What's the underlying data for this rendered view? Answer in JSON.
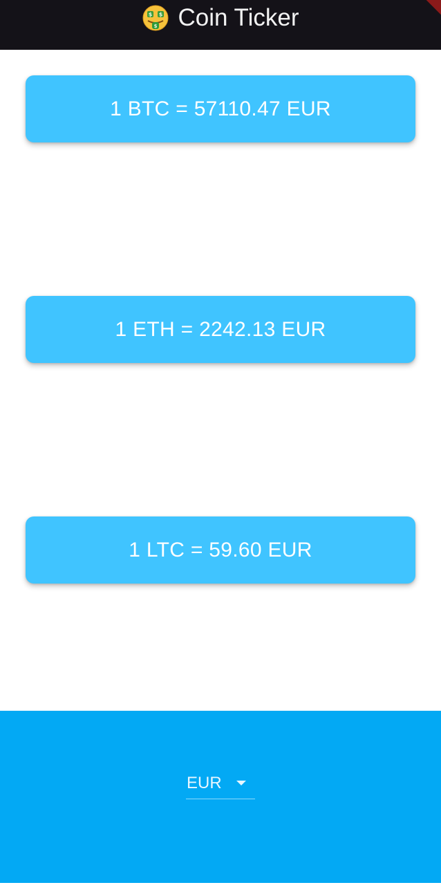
{
  "app_bar": {
    "title": "Coin Ticker",
    "icon": "money-mouth-face-icon"
  },
  "rates": [
    {
      "text": "1 BTC = 57110.47 EUR"
    },
    {
      "text": "1 ETH = 2242.13 EUR"
    },
    {
      "text": "1 LTC = 59.60 EUR"
    }
  ],
  "currency_picker": {
    "selected": "EUR",
    "icon": "dropdown-arrow-icon"
  },
  "colors": {
    "app_bar": "#141218",
    "card": "#40c4ff",
    "bottom_panel": "#03a9f4",
    "text": "#ffffff"
  }
}
